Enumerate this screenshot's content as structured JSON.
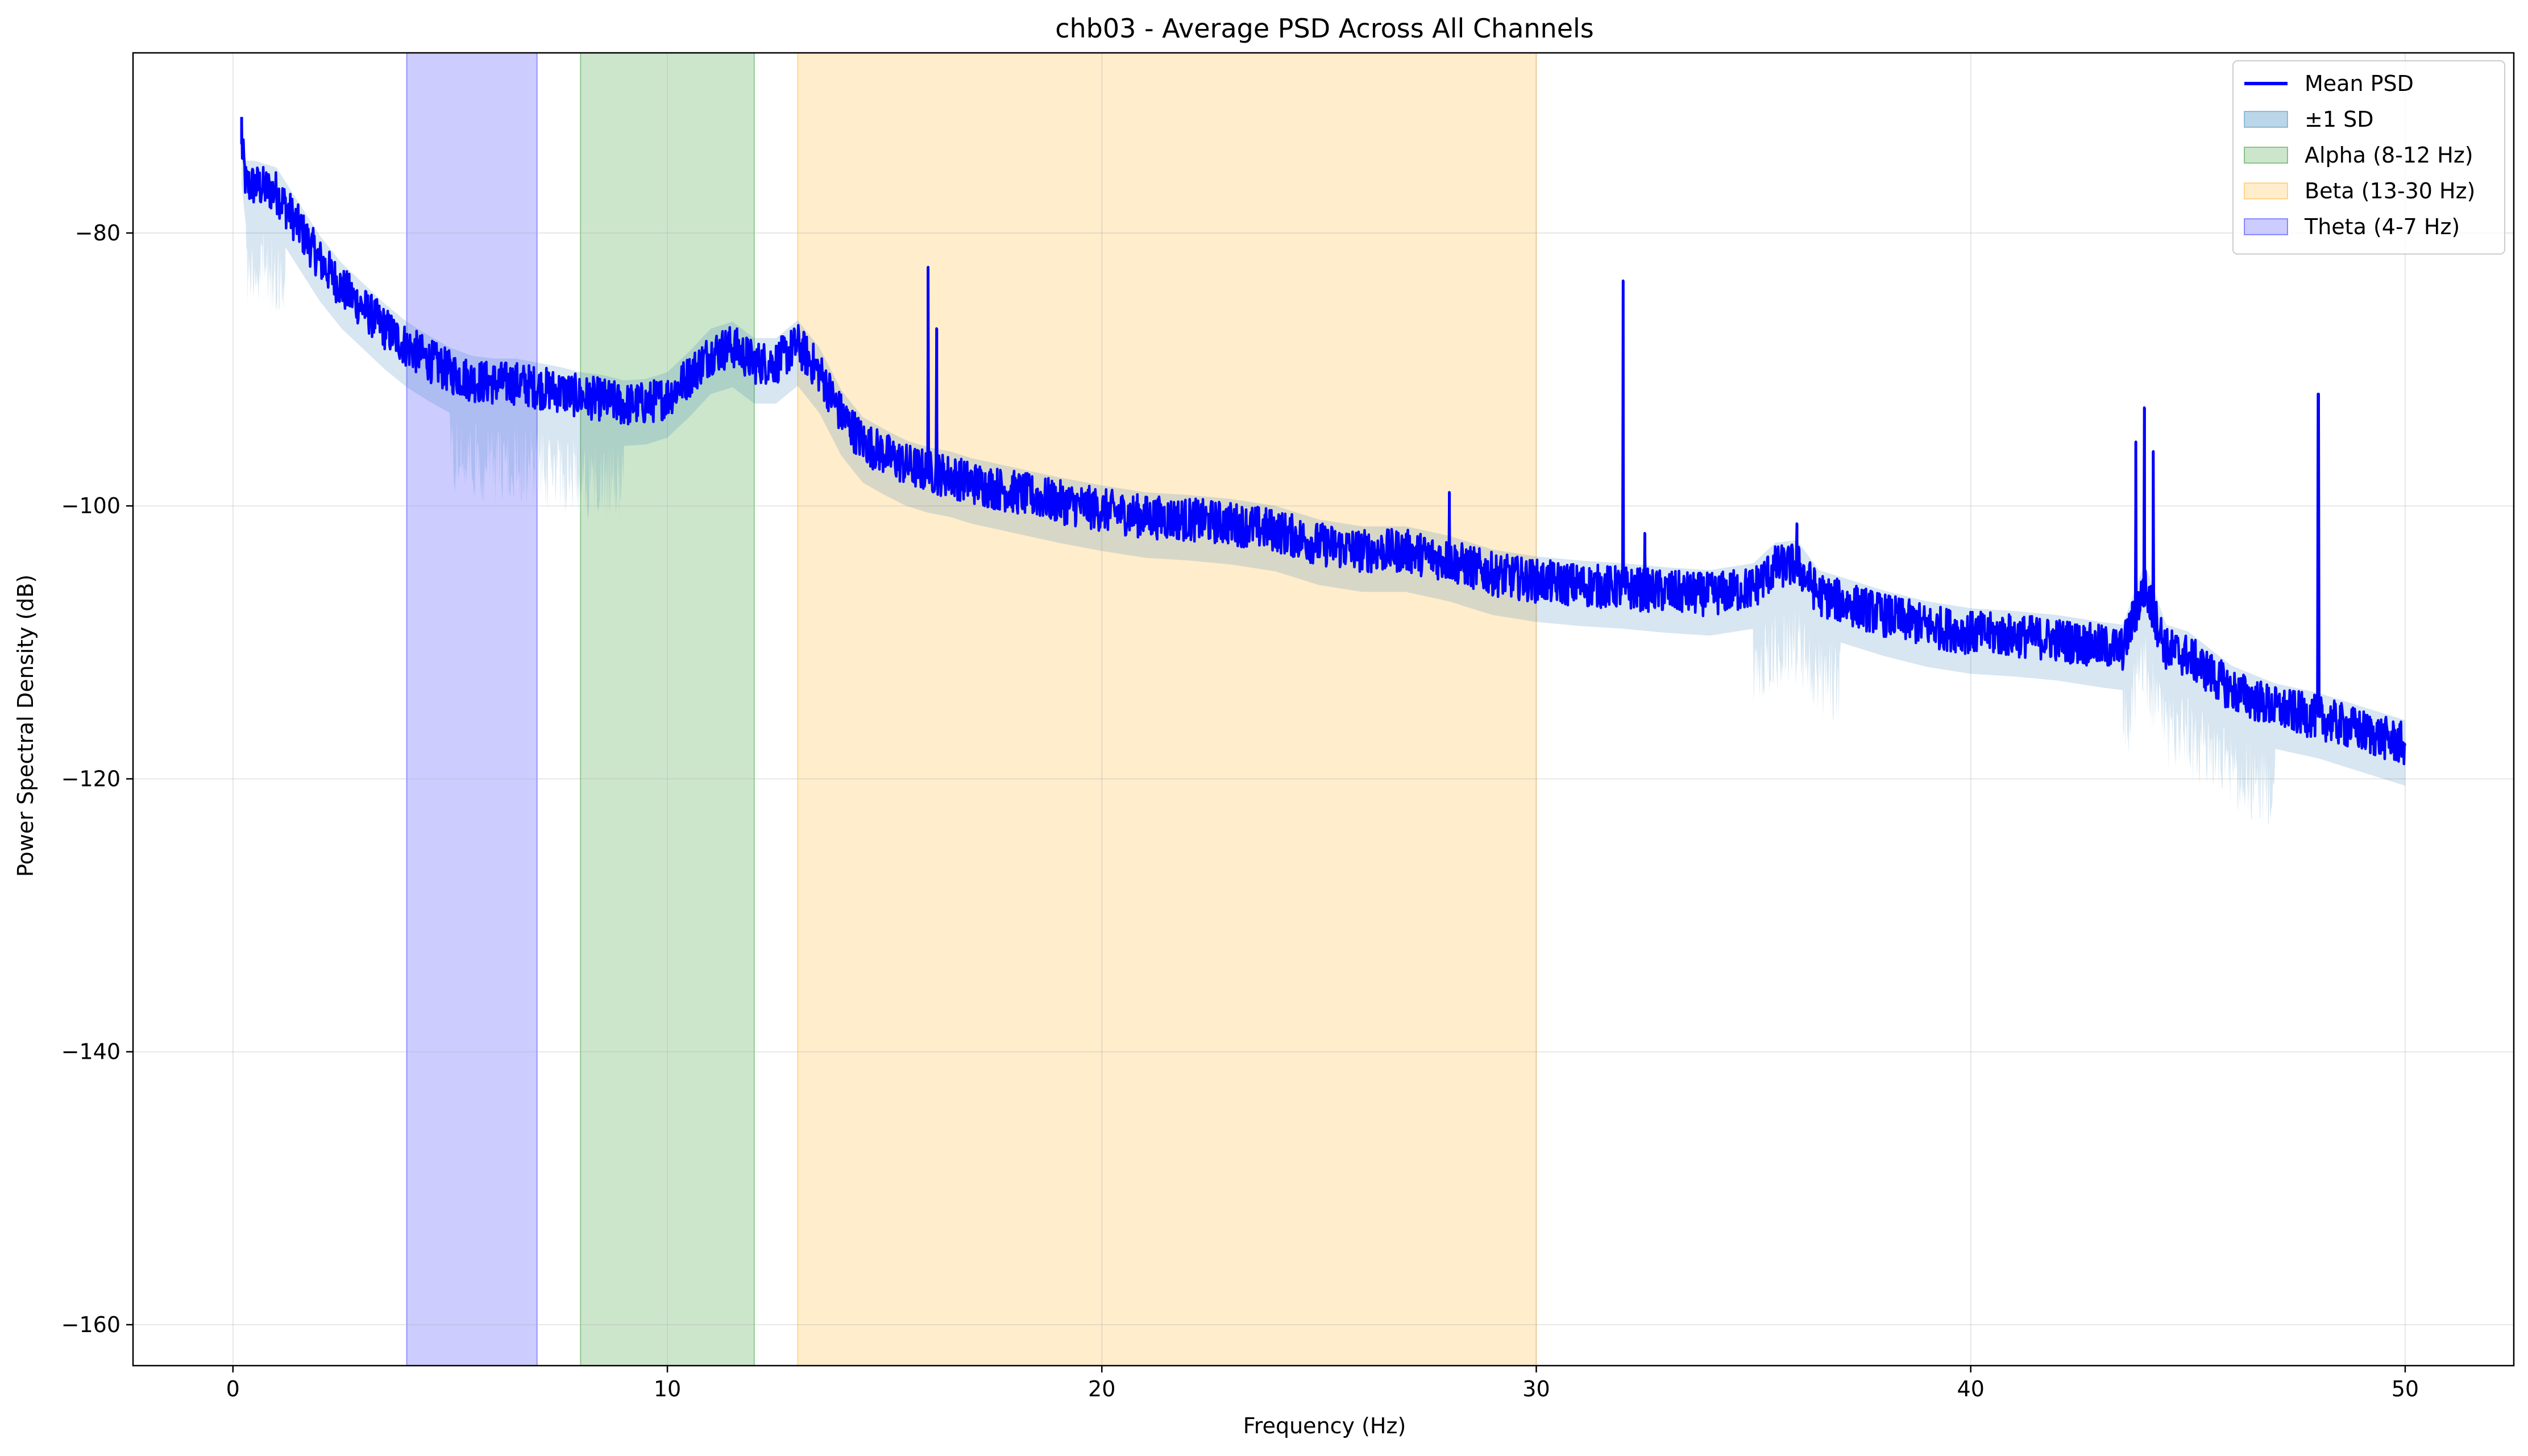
{
  "chart_data": {
    "type": "line",
    "title": "chb03 - Average PSD Across All Channels",
    "xlabel": "Frequency (Hz)",
    "ylabel": "Power Spectral Density (dB)",
    "xlim": [
      -2.3,
      52.5
    ],
    "ylim": [
      -163,
      -66.8
    ],
    "xticks": [
      0,
      10,
      20,
      30,
      40,
      50
    ],
    "xtick_labels": [
      "0",
      "10",
      "20",
      "30",
      "40",
      "50"
    ],
    "yticks": [
      -80,
      -100,
      -120,
      -140,
      -160
    ],
    "ytick_labels": [
      "−80",
      "−100",
      "−120",
      "−140",
      "−160"
    ],
    "grid": true,
    "legend_placement": "top-right",
    "bands": [
      {
        "name": "Alpha (8-12 Hz)",
        "x0": 8,
        "x1": 12,
        "color": "#008000",
        "opacity": 0.2
      },
      {
        "name": "Beta (13-30 Hz)",
        "x0": 13,
        "x1": 30,
        "color": "#ffa500",
        "opacity": 0.2
      },
      {
        "name": "Theta (4-7 Hz)",
        "x0": 4,
        "x1": 7,
        "color": "#0000ff",
        "opacity": 0.2
      }
    ],
    "series": [
      {
        "name": "Mean PSD",
        "color": "#0000ff",
        "x": [
          0.2,
          0.3,
          0.5,
          1.0,
          1.5,
          2.0,
          2.5,
          3.0,
          3.5,
          4.0,
          4.5,
          5.0,
          5.5,
          6.0,
          6.5,
          7.0,
          7.5,
          8.0,
          8.5,
          9.0,
          9.5,
          10.0,
          10.5,
          11.0,
          11.5,
          12.0,
          12.5,
          13.0,
          13.5,
          14.0,
          14.5,
          15.0,
          15.5,
          16.0,
          16.5,
          17.0,
          18.0,
          19.0,
          20.0,
          21.0,
          22.0,
          23.0,
          24.0,
          25.0,
          26.0,
          27.0,
          28.0,
          29.0,
          30.0,
          31.0,
          32.0,
          33.0,
          34.0,
          35.0,
          35.5,
          36.0,
          36.5,
          37.0,
          38.0,
          39.0,
          40.0,
          41.0,
          42.0,
          43.0,
          43.5,
          44.0,
          44.5,
          45.0,
          46.0,
          47.0,
          48.0,
          49.0,
          50.0
        ],
        "y": [
          -73.5,
          -76.5,
          -76.5,
          -77.0,
          -79.5,
          -82.0,
          -84.0,
          -85.5,
          -87.0,
          -88.3,
          -89.3,
          -90.2,
          -90.8,
          -91.0,
          -91.0,
          -91.3,
          -91.6,
          -92.0,
          -92.2,
          -92.6,
          -92.5,
          -92.0,
          -90.5,
          -88.8,
          -88.3,
          -89.5,
          -89.5,
          -88.2,
          -90.2,
          -93.3,
          -95.3,
          -96.2,
          -97.0,
          -97.5,
          -97.8,
          -98.3,
          -99.0,
          -99.7,
          -100.3,
          -100.8,
          -101.0,
          -101.3,
          -101.8,
          -102.8,
          -103.3,
          -103.3,
          -104.0,
          -105.0,
          -105.5,
          -105.8,
          -106.0,
          -106.3,
          -106.5,
          -106.0,
          -104.5,
          -104.3,
          -106.5,
          -107.0,
          -108.0,
          -108.8,
          -109.3,
          -109.5,
          -109.8,
          -110.3,
          -110.5,
          -106.0,
          -110.5,
          -111.0,
          -113.5,
          -114.8,
          -115.5,
          -116.5,
          -117.5
        ]
      }
    ],
    "sd_band": {
      "name": "±1 SD",
      "color": "#1f77b4",
      "opacity": 0.3,
      "typical_width_db": 3
    },
    "peaks": [
      {
        "x": 0.2,
        "y": -71.5
      },
      {
        "x": 16.0,
        "y": -82.5
      },
      {
        "x": 16.2,
        "y": -87.0
      },
      {
        "x": 28.0,
        "y": -99.0
      },
      {
        "x": 32.0,
        "y": -83.5
      },
      {
        "x": 32.5,
        "y": -102.0
      },
      {
        "x": 36.0,
        "y": -101.3
      },
      {
        "x": 43.8,
        "y": -95.3
      },
      {
        "x": 44.0,
        "y": -92.8
      },
      {
        "x": 44.2,
        "y": -96.0
      },
      {
        "x": 48.0,
        "y": -91.8
      }
    ],
    "legend": [
      "Mean PSD",
      "±1 SD",
      "Alpha (8-12 Hz)",
      "Beta (13-30 Hz)",
      "Theta (4-7 Hz)"
    ]
  }
}
